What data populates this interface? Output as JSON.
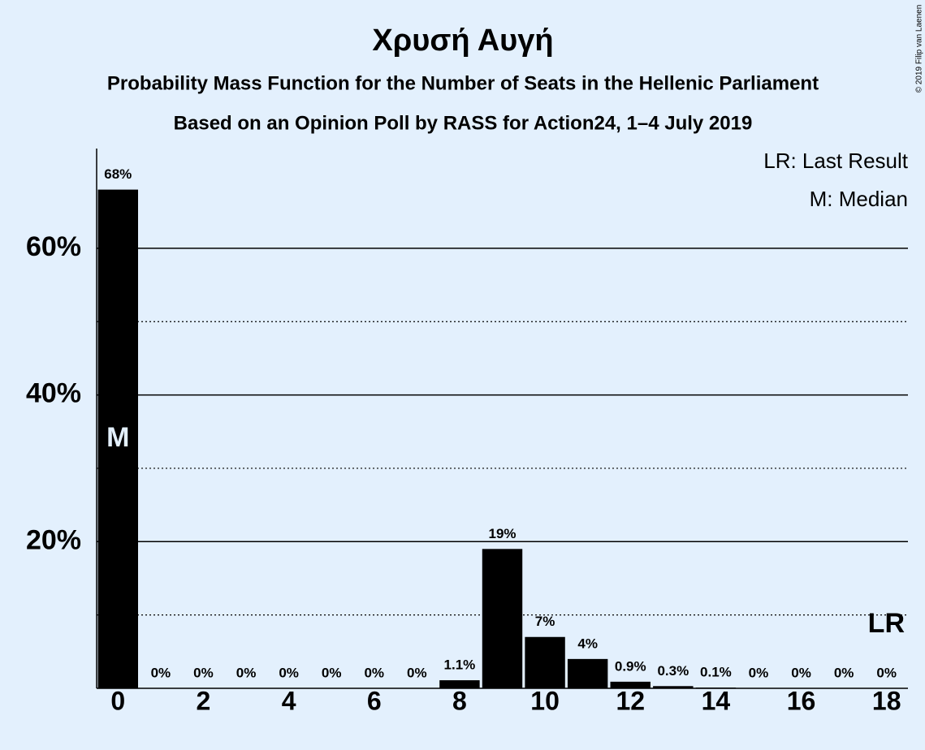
{
  "chart_data": {
    "type": "bar",
    "title": "Χρυσή Αυγή",
    "subtitle": [
      "Probability Mass Function for the Number of Seats in the Hellenic Parliament",
      "Based on an Opinion Poll by RASS for Action24, 1–4 July 2019"
    ],
    "x": [
      0,
      1,
      2,
      3,
      4,
      5,
      6,
      7,
      8,
      9,
      10,
      11,
      12,
      13,
      14,
      15,
      16,
      17,
      18
    ],
    "values": [
      68,
      0,
      0,
      0,
      0,
      0,
      0,
      0,
      1.1,
      19,
      7,
      4,
      0.9,
      0.3,
      0.1,
      0,
      0,
      0,
      0
    ],
    "value_labels": [
      "68%",
      "0%",
      "0%",
      "0%",
      "0%",
      "0%",
      "0%",
      "0%",
      "1.1%",
      "19%",
      "7%",
      "4%",
      "0.9%",
      "0.3%",
      "0.1%",
      "0%",
      "0%",
      "0%",
      "0%"
    ],
    "color": "#000000",
    "xlim": [
      -0.5,
      18.5
    ],
    "xticks": [
      0,
      2,
      4,
      6,
      8,
      10,
      12,
      14,
      16,
      18
    ],
    "ylim": [
      0,
      73.6
    ],
    "yticks": [
      {
        "value": 20,
        "label": "20%"
      },
      {
        "value": 40,
        "label": "40%"
      },
      {
        "value": 60,
        "label": "60%"
      }
    ],
    "minor_yticks": [
      10,
      30,
      50
    ],
    "grid": true,
    "legend": [
      "LR: Last Result",
      "M: Median"
    ],
    "annotations": [
      {
        "text": "M",
        "x": 0
      },
      {
        "text": "LR",
        "x": 18
      }
    ],
    "credit": "© 2019 Filip van Laenen"
  }
}
